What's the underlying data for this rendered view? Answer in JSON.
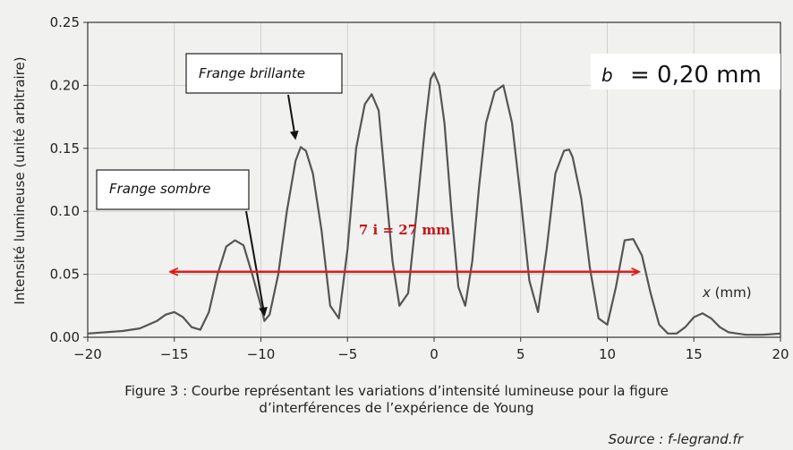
{
  "chart_data": {
    "type": "line",
    "ylabel": "Intensité lumineuse (unité arbitraire)",
    "xlabel": "x (mm)",
    "xlim": [
      -20,
      20
    ],
    "ylim": [
      0,
      0.25
    ],
    "xticks": [
      "−20",
      "−15",
      "−10",
      "−5",
      "0",
      "5",
      "10",
      "15",
      "20"
    ],
    "yticks": [
      "0.00",
      "0.05",
      "0.10",
      "0.15",
      "0.20",
      "0.25"
    ],
    "grid": true,
    "series": [
      {
        "x": [
          -20,
          -18,
          -17,
          -16,
          -15.5,
          -15,
          -14.5,
          -14,
          -13.5,
          -13,
          -12.5,
          -12,
          -11.5,
          -11,
          -10.5,
          -10,
          -9.8,
          -9.5,
          -9,
          -8.5,
          -8,
          -7.7,
          -7.4,
          -7,
          -6.5,
          -6,
          -5.5,
          -5,
          -4.5,
          -4,
          -3.6,
          -3.2,
          -2.8,
          -2.4,
          -2,
          -1.5,
          -1,
          -0.5,
          -0.2,
          0,
          0.3,
          0.6,
          1,
          1.4,
          1.8,
          2.2,
          2.6,
          3,
          3.5,
          4,
          4.5,
          5,
          5.5,
          6,
          6.5,
          7,
          7.5,
          7.8,
          8,
          8.5,
          9,
          9.5,
          10,
          10.5,
          11,
          11.5,
          12,
          12.5,
          13,
          13.5,
          14,
          14.5,
          15,
          15.5,
          16,
          16.5,
          17,
          17.5,
          18,
          19,
          20
        ],
        "values": [
          0.003,
          0.005,
          0.007,
          0.013,
          0.018,
          0.02,
          0.016,
          0.008,
          0.006,
          0.02,
          0.05,
          0.072,
          0.077,
          0.073,
          0.05,
          0.025,
          0.013,
          0.018,
          0.05,
          0.1,
          0.14,
          0.151,
          0.148,
          0.13,
          0.085,
          0.025,
          0.015,
          0.07,
          0.15,
          0.185,
          0.193,
          0.18,
          0.12,
          0.06,
          0.025,
          0.035,
          0.1,
          0.17,
          0.205,
          0.21,
          0.2,
          0.17,
          0.1,
          0.04,
          0.025,
          0.06,
          0.12,
          0.17,
          0.195,
          0.2,
          0.17,
          0.11,
          0.045,
          0.02,
          0.07,
          0.13,
          0.148,
          0.149,
          0.143,
          0.11,
          0.055,
          0.015,
          0.01,
          0.04,
          0.077,
          0.078,
          0.065,
          0.035,
          0.01,
          0.003,
          0.003,
          0.008,
          0.016,
          0.019,
          0.015,
          0.008,
          0.004,
          0.003,
          0.002,
          0.002,
          0.003
        ]
      }
    ],
    "annotations": {
      "bright_fringe": "Frange brillante",
      "dark_fringe": "Frange sombre",
      "slit_param": "b = 0,20 mm",
      "measure": "7 i = 27 mm",
      "measure_from": -15.2,
      "measure_to": 11.8,
      "bright_target_x": -7.7,
      "dark_target_x": -9.8
    }
  },
  "caption": {
    "line1": "Figure 3 : Courbe représentant les variations d’intensité lumineuse pour la figure",
    "line2": "d’interférences de l’expérience de Young"
  },
  "source": "Source : f-legrand.fr",
  "colors": {
    "curve": "#555555",
    "measure": "#e01b1b",
    "measure_text": "#c81414"
  }
}
